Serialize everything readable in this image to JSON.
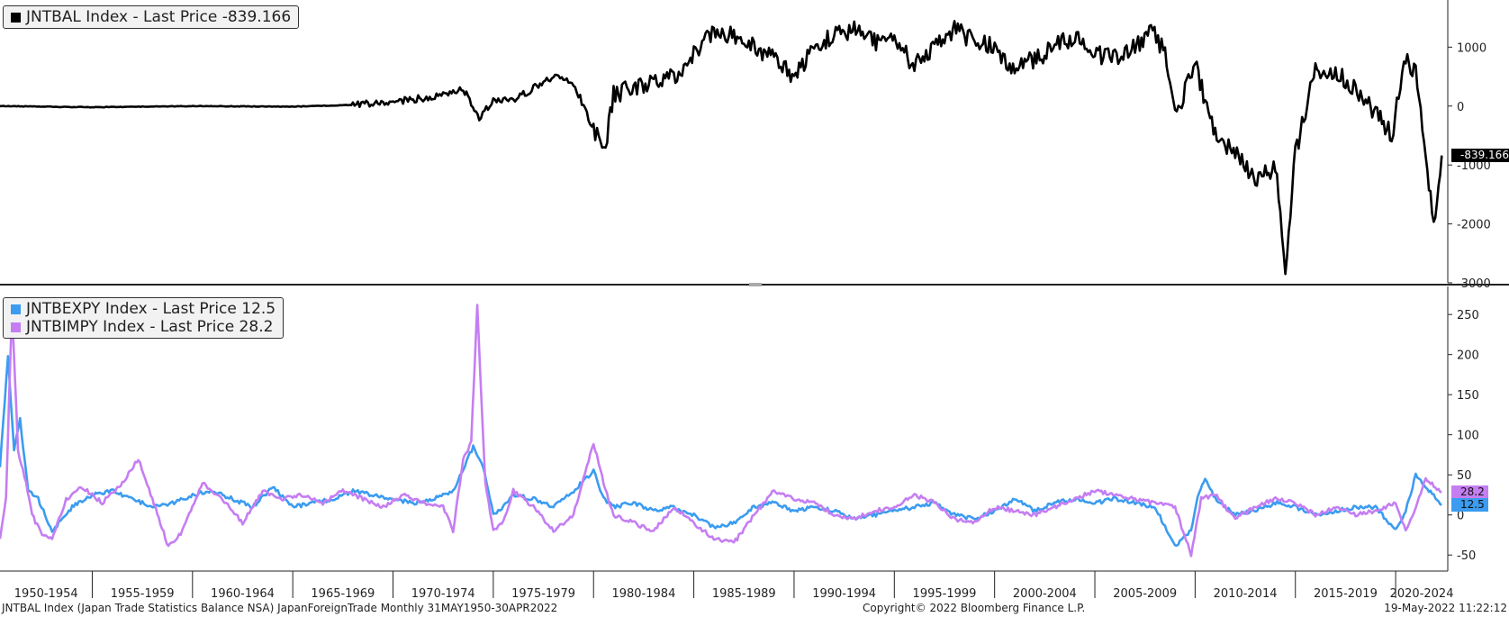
{
  "chart_data": [
    {
      "type": "line",
      "panel": "top",
      "legend": [
        {
          "label": "JNTBAL Index - Last Price -839.166",
          "color": "#000000"
        }
      ],
      "last_value_label": "-839.166",
      "ylim": [
        -3000,
        1800
      ],
      "yticks": [
        1000,
        0,
        -1000,
        -2000,
        -3000
      ],
      "ytick_labels": [
        "1000",
        "0",
        "-1000",
        "-2000",
        "-3000"
      ],
      "series": [
        {
          "color": "#000000",
          "x": [
            1950.4,
            1955,
            1960,
            1965,
            1968,
            1970,
            1972,
            1973.5,
            1974.3,
            1975,
            1976,
            1977,
            1978,
            1979,
            1980,
            1980.6,
            1981,
            1982,
            1983,
            1984,
            1985,
            1986,
            1987,
            1988,
            1989,
            1990,
            1991,
            1992,
            1993,
            1994,
            1995,
            1996,
            1997,
            1998,
            1999,
            2000,
            2001,
            2002,
            2003,
            2004,
            2005,
            2006,
            2007,
            2007.8,
            2008.5,
            2009,
            2010,
            2011,
            2012,
            2013,
            2014,
            2014.5,
            2015,
            2016,
            2017,
            2018,
            2019,
            2019.8,
            2020.5,
            2021,
            2021.5,
            2021.9,
            2022.3
          ],
          "values": [
            0,
            -20,
            0,
            -10,
            20,
            80,
            150,
            300,
            -200,
            100,
            100,
            300,
            500,
            400,
            -400,
            -700,
            200,
            300,
            400,
            500,
            900,
            1300,
            1200,
            1000,
            800,
            500,
            1000,
            1200,
            1300,
            1100,
            1100,
            700,
            1000,
            1300,
            1100,
            1000,
            600,
            800,
            1000,
            1200,
            900,
            800,
            1000,
            1300,
            900,
            -200,
            700,
            -500,
            -800,
            -1300,
            -1000,
            -2800,
            -800,
            600,
            600,
            300,
            -100,
            -500,
            800,
            600,
            -800,
            -2100,
            -839
          ]
        }
      ]
    },
    {
      "type": "line",
      "panel": "bottom",
      "legend": [
        {
          "label": "JNTBEXPY Index - Last Price 12.5",
          "color": "#3b9cf0"
        },
        {
          "label": "JNTBIMPY Index - Last Price 28.2",
          "color": "#c57ef2"
        }
      ],
      "ylim": [
        -70,
        285
      ],
      "yticks": [
        250,
        200,
        150,
        100,
        50,
        0,
        -50
      ],
      "ytick_labels": [
        "250",
        "200",
        "150",
        "100",
        "50",
        "0",
        "-50"
      ],
      "series": [
        {
          "name": "JNTBEXPY Index",
          "color": "#3b9cf0",
          "last_value_label": "12.5",
          "x": [
            1950.4,
            1950.8,
            1951.1,
            1951.4,
            1951.8,
            1952.3,
            1953,
            1954,
            1955,
            1956,
            1957,
            1958,
            1959,
            1960,
            1961,
            1962,
            1963,
            1964,
            1965,
            1966,
            1967,
            1968,
            1969,
            1970,
            1971,
            1972,
            1973,
            1974,
            1974.5,
            1975,
            1975.5,
            1976,
            1977,
            1978,
            1979,
            1980,
            1980.5,
            1981,
            1982,
            1983,
            1984,
            1985,
            1986,
            1987,
            1988,
            1989,
            1990,
            1991,
            1992,
            1993,
            1994,
            1995,
            1996,
            1997,
            1998,
            1999,
            2000,
            2001,
            2002,
            2003,
            2004,
            2005,
            2006,
            2007,
            2008,
            2009,
            2009.8,
            2010.2,
            2010.5,
            2011,
            2012,
            2013,
            2014,
            2015,
            2016,
            2017,
            2018,
            2019,
            2020,
            2020.5,
            2021,
            2021.5,
            2022.3
          ],
          "values": [
            60,
            200,
            80,
            120,
            30,
            20,
            -20,
            10,
            25,
            30,
            20,
            10,
            15,
            25,
            30,
            20,
            10,
            35,
            10,
            15,
            20,
            30,
            25,
            20,
            15,
            20,
            30,
            85,
            60,
            0,
            10,
            25,
            20,
            10,
            30,
            55,
            20,
            10,
            15,
            5,
            10,
            0,
            -15,
            -10,
            10,
            15,
            5,
            10,
            5,
            -5,
            0,
            5,
            10,
            15,
            0,
            -5,
            5,
            20,
            5,
            15,
            20,
            15,
            20,
            15,
            10,
            -40,
            -20,
            30,
            45,
            20,
            0,
            5,
            15,
            10,
            0,
            5,
            10,
            10,
            -20,
            5,
            50,
            35,
            12.5
          ]
        },
        {
          "name": "JNTBIMPY Index",
          "color": "#c57ef2",
          "last_value_label": "28.2",
          "x": [
            1950.4,
            1950.7,
            1951,
            1951.3,
            1951.7,
            1952,
            1952.5,
            1953,
            1953.7,
            1954.5,
            1955.5,
            1956.5,
            1957.3,
            1958,
            1958.8,
            1959.5,
            1960.5,
            1961.5,
            1962.5,
            1963.5,
            1964.5,
            1965.5,
            1966.5,
            1967.5,
            1968.5,
            1969.5,
            1970.5,
            1971.5,
            1972.5,
            1973,
            1973.5,
            1973.9,
            1974.2,
            1974.6,
            1975,
            1975.5,
            1976,
            1977,
            1978,
            1979,
            1980,
            1980.5,
            1981,
            1982,
            1983,
            1984,
            1985,
            1986,
            1987,
            1988,
            1989,
            1990,
            1991,
            1992,
            1993,
            1994,
            1995,
            1996,
            1997,
            1998,
            1999,
            2000,
            2001,
            2002,
            2003,
            2004,
            2005,
            2006,
            2007,
            2008,
            2009,
            2009.8,
            2010.3,
            2011,
            2012,
            2013,
            2014,
            2015,
            2016,
            2017,
            2018,
            2019,
            2020,
            2020.5,
            2021,
            2021.5,
            2022.3
          ],
          "values": [
            -30,
            20,
            260,
            80,
            40,
            0,
            -25,
            -30,
            20,
            35,
            15,
            40,
            70,
            20,
            -40,
            -20,
            40,
            20,
            -10,
            30,
            20,
            25,
            15,
            30,
            20,
            10,
            25,
            15,
            10,
            -20,
            70,
            90,
            260,
            40,
            -20,
            -10,
            30,
            10,
            -20,
            0,
            90,
            40,
            0,
            -10,
            -20,
            10,
            -10,
            -30,
            -35,
            0,
            30,
            20,
            15,
            0,
            -5,
            5,
            10,
            25,
            15,
            -5,
            -10,
            10,
            5,
            0,
            10,
            20,
            30,
            25,
            20,
            15,
            10,
            -50,
            20,
            25,
            -5,
            10,
            20,
            15,
            0,
            10,
            0,
            5,
            15,
            -20,
            10,
            45,
            28.2
          ]
        }
      ]
    }
  ],
  "x_axis": {
    "range": [
      1950.4,
      2022.6
    ],
    "tick_years": [
      1950,
      1955,
      1960,
      1965,
      1970,
      1975,
      1980,
      1985,
      1990,
      1995,
      2000,
      2005,
      2010,
      2015,
      2020,
      2025
    ],
    "labels": [
      "1950-1954",
      "1955-1959",
      "1960-1964",
      "1965-1969",
      "1970-1974",
      "1975-1979",
      "1980-1984",
      "1985-1989",
      "1990-1994",
      "1995-1999",
      "2000-2004",
      "2005-2009",
      "2010-2014",
      "2015-2019",
      "2020-2024"
    ]
  },
  "footer": {
    "left": "JNTBAL Index (Japan Trade Statistics Balance NSA) JapanForeignTrade  Monthly 31MAY1950-30APR2022",
    "center": "Copyright© 2022 Bloomberg Finance L.P.",
    "right": "19-May-2022 11:22:12"
  }
}
